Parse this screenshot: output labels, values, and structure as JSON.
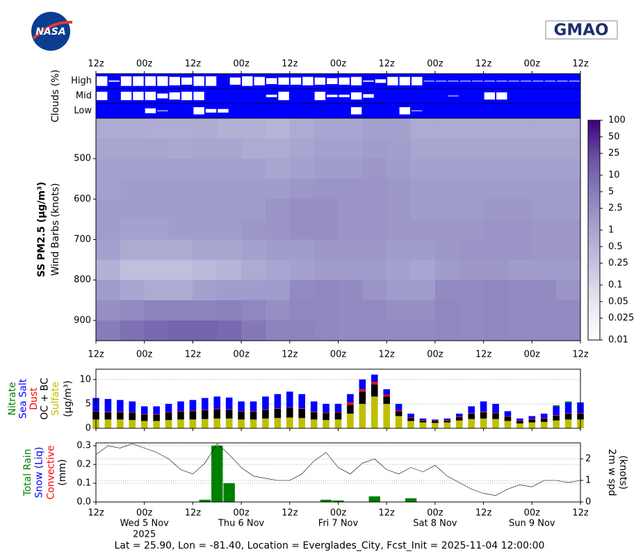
{
  "header": {
    "left_logo": "NASA",
    "right_logo": "GMAO"
  },
  "footer": "Lat = 25.90, Lon = -81.40, Location = Everglades_City, Fcst_Init = 2025-11-04 12:00:00",
  "time_axis": {
    "xlim": [
      0,
      120
    ],
    "xticks": [
      {
        "value": 0,
        "label": "12z"
      },
      {
        "value": 12,
        "label": "00z"
      },
      {
        "value": 24,
        "label": "12z"
      },
      {
        "value": 36,
        "label": "00z"
      },
      {
        "value": 48,
        "label": "12z"
      },
      {
        "value": 60,
        "label": "00z"
      },
      {
        "value": 72,
        "label": "12z"
      },
      {
        "value": 84,
        "label": "00z"
      },
      {
        "value": 96,
        "label": "12z"
      },
      {
        "value": 108,
        "label": "00z"
      },
      {
        "value": 120,
        "label": "12z"
      }
    ],
    "date_labels": [
      {
        "value": 12,
        "label": "Wed 5 Nov"
      },
      {
        "value": 36,
        "label": "Thu 6 Nov"
      },
      {
        "value": 60,
        "label": "Fri 7 Nov"
      },
      {
        "value": 84,
        "label": "Sat 8 Nov"
      },
      {
        "value": 108,
        "label": "Sun 9 Nov"
      }
    ],
    "year": {
      "value": 12,
      "label": "2025"
    }
  },
  "chart_data": [
    {
      "type": "cloud",
      "ylabel": "Clouds (%)",
      "background": "#0000ff",
      "box_color": "#ffffff",
      "categories": [
        "High",
        "Mid",
        "Low"
      ],
      "x": [
        0,
        3,
        6,
        9,
        12,
        15,
        18,
        21,
        24,
        27,
        30,
        33,
        36,
        39,
        42,
        45,
        48,
        51,
        54,
        57,
        60,
        63,
        66,
        69,
        72,
        75,
        78,
        81,
        84,
        87,
        90,
        93,
        96,
        99,
        102,
        105,
        108,
        111,
        114,
        117
      ],
      "values": [
        [
          80,
          10,
          80,
          80,
          80,
          80,
          70,
          60,
          80,
          80,
          0,
          60,
          80,
          70,
          50,
          60,
          60,
          70,
          60,
          50,
          60,
          70,
          10,
          30,
          70,
          70,
          70,
          5,
          5,
          5,
          5,
          5,
          5,
          5,
          5,
          5,
          5,
          5,
          5,
          5
        ],
        [
          70,
          0,
          70,
          70,
          70,
          40,
          60,
          70,
          70,
          0,
          0,
          0,
          0,
          0,
          20,
          70,
          0,
          0,
          70,
          20,
          20,
          60,
          30,
          0,
          0,
          0,
          0,
          0,
          0,
          5,
          0,
          0,
          60,
          60,
          0,
          0,
          0,
          0,
          0,
          0
        ],
        [
          0,
          0,
          0,
          0,
          40,
          5,
          0,
          0,
          60,
          30,
          30,
          0,
          0,
          0,
          0,
          0,
          0,
          0,
          0,
          0,
          0,
          60,
          0,
          0,
          0,
          60,
          5,
          0,
          0,
          0,
          0,
          0,
          0,
          0,
          0,
          0,
          0,
          0,
          0,
          0
        ]
      ]
    },
    {
      "type": "heatmap",
      "ylabel": "SS PM2.5 (μg/m³)",
      "ylabel2": "Wind Barbs (knots)",
      "ylim": [
        950,
        400
      ],
      "yticks": [
        500,
        600,
        700,
        800,
        900
      ],
      "x": [
        0,
        6,
        12,
        18,
        24,
        30,
        36,
        42,
        48,
        54,
        60,
        66,
        72,
        78,
        84,
        90,
        96,
        102,
        108,
        114
      ],
      "y": [
        425,
        475,
        525,
        575,
        625,
        675,
        725,
        775,
        825,
        875,
        925
      ],
      "values": [
        [
          0.8,
          0.8,
          0.7,
          0.7,
          0.8,
          0.6,
          0.6,
          0.5,
          0.8,
          1,
          1,
          1.2,
          1.2,
          0.8,
          0.8,
          0.8,
          0.8,
          0.8,
          0.8,
          0.8
        ],
        [
          1,
          1,
          1,
          0.9,
          1,
          1,
          0.8,
          0.8,
          1,
          1.2,
          1.2,
          1.5,
          1.3,
          1,
          1,
          1,
          1,
          1,
          1,
          1
        ],
        [
          1.2,
          1.2,
          1.2,
          1.2,
          1.2,
          1.2,
          1.2,
          1,
          1.2,
          1.5,
          1.5,
          1.8,
          1.5,
          1.2,
          1.2,
          1.2,
          1.2,
          1.2,
          1.2,
          1.2
        ],
        [
          1.2,
          1.5,
          1.5,
          1.5,
          1.5,
          1.5,
          1.5,
          1.5,
          1.8,
          2,
          2,
          2,
          1.8,
          1.5,
          1.5,
          1.5,
          1.5,
          1.5,
          1.5,
          1.5
        ],
        [
          1.5,
          1.5,
          1.5,
          1.5,
          1.5,
          1.5,
          1.5,
          2,
          2.5,
          2.5,
          2,
          2,
          1.8,
          1.5,
          1.5,
          1.5,
          1.8,
          1.8,
          1.5,
          1.5
        ],
        [
          1.5,
          1.2,
          1.2,
          1.5,
          1.5,
          1.5,
          1.8,
          2,
          2.5,
          2.5,
          2,
          2,
          1.8,
          1.8,
          1.8,
          1.8,
          2,
          2,
          1.8,
          1.8
        ],
        [
          1.2,
          0.8,
          0.8,
          0.8,
          1,
          1,
          1.2,
          1.5,
          1.5,
          1.8,
          1.8,
          1.8,
          1.5,
          1.5,
          1.8,
          2,
          2,
          2,
          1.8,
          1.8
        ],
        [
          0.6,
          0.3,
          0.3,
          0.3,
          0.4,
          0.5,
          0.8,
          1,
          1.2,
          1.5,
          1.5,
          1.5,
          1.2,
          1,
          1.5,
          1.8,
          1.8,
          1.5,
          1.5,
          1.5
        ],
        [
          1.5,
          1,
          0.8,
          0.8,
          1.2,
          1.5,
          1.5,
          1.5,
          3,
          3.5,
          3,
          2,
          1.5,
          1.5,
          3,
          3,
          3.5,
          3,
          3,
          2
        ],
        [
          2.5,
          3,
          4,
          4,
          4,
          4.5,
          3.5,
          2.5,
          3.5,
          3.5,
          3,
          3,
          2.5,
          2.5,
          3.5,
          3,
          3.5,
          3,
          3,
          3
        ],
        [
          5,
          8,
          10,
          12,
          12,
          10,
          6,
          4,
          4,
          3.5,
          3,
          3,
          3,
          3,
          3.5,
          3,
          3.5,
          3,
          3,
          3
        ]
      ],
      "log": true,
      "clim": [
        0.01,
        100
      ],
      "cticks": [
        100,
        50,
        25,
        10,
        5,
        2.5,
        1,
        0.5,
        0.25,
        0.1,
        0.05,
        0.025,
        0.01
      ],
      "colormap": [
        "#ffffff",
        "#e8e8f2",
        "#c6c6e0",
        "#a8a6d0",
        "#8a7fbc",
        "#6a51a3",
        "#3f007d"
      ]
    },
    {
      "type": "stacked_bar",
      "ylabel_unit": "(μg/m³)",
      "ylim": [
        0,
        12.1
      ],
      "yticks": [
        0,
        5,
        10
      ],
      "grid": true,
      "x": [
        0,
        3,
        6,
        9,
        12,
        15,
        18,
        21,
        24,
        27,
        30,
        33,
        36,
        39,
        42,
        45,
        48,
        51,
        54,
        57,
        60,
        63,
        66,
        69,
        72,
        75,
        78,
        81,
        84,
        87,
        90,
        93,
        96,
        99,
        102,
        105,
        108,
        111,
        114,
        117,
        120
      ],
      "series": [
        {
          "name": "Sulfate",
          "color": "#bfbf00",
          "values": [
            1.8,
            1.8,
            1.8,
            1.7,
            1.5,
            1.5,
            1.7,
            1.8,
            1.8,
            1.9,
            2.0,
            2.0,
            1.8,
            1.8,
            2.0,
            2.1,
            2.2,
            2.1,
            1.8,
            1.7,
            1.8,
            3.0,
            5.0,
            6.5,
            5.0,
            2.5,
            1.5,
            1.2,
            1.1,
            1.2,
            1.6,
            1.9,
            2.0,
            1.9,
            1.5,
            1.0,
            1.2,
            1.3,
            1.6,
            1.8,
            1.8
          ]
        },
        {
          "name": "OC + BC",
          "color": "#000000",
          "values": [
            1.6,
            1.5,
            1.5,
            1.5,
            1.3,
            1.3,
            1.5,
            1.6,
            1.7,
            1.8,
            1.9,
            1.8,
            1.6,
            1.6,
            1.8,
            1.9,
            2.0,
            1.9,
            1.5,
            1.4,
            1.4,
            1.8,
            2.5,
            2.5,
            1.5,
            1.0,
            0.6,
            0.4,
            0.4,
            0.4,
            0.7,
            1.1,
            1.3,
            1.2,
            0.9,
            0.5,
            0.6,
            0.7,
            1.0,
            1.2,
            1.2
          ]
        },
        {
          "name": "Dust",
          "color": "#ff0000",
          "values": [
            0.1,
            0.1,
            0.1,
            0.1,
            0.1,
            0.1,
            0.1,
            0.1,
            0.1,
            0.1,
            0.1,
            0.1,
            0.1,
            0.1,
            0.1,
            0.1,
            0.1,
            0.1,
            0.1,
            0.1,
            0.1,
            0.5,
            0.5,
            0.5,
            0.4,
            0.2,
            0.1,
            0.1,
            0.1,
            0.1,
            0.1,
            0.1,
            0.1,
            0.1,
            0.1,
            0.1,
            0.1,
            0.1,
            0.1,
            0.1,
            0.1
          ]
        },
        {
          "name": "Sea Salt",
          "color": "#0000ff",
          "values": [
            2.7,
            2.6,
            2.4,
            2.2,
            1.6,
            1.6,
            1.7,
            2.0,
            2.2,
            2.4,
            2.5,
            2.4,
            2.0,
            2.0,
            2.6,
            2.9,
            3.2,
            2.9,
            2.1,
            1.8,
            1.7,
            1.7,
            2.0,
            1.5,
            1.1,
            1.3,
            0.8,
            0.3,
            0.2,
            0.3,
            0.6,
            1.4,
            2.1,
            1.8,
            1.0,
            0.4,
            0.6,
            0.9,
            1.8,
            2.2,
            2.2
          ]
        },
        {
          "name": "Nitrate",
          "color": "#008000",
          "values": [
            0,
            0,
            0,
            0,
            0,
            0,
            0,
            0,
            0,
            0,
            0,
            0,
            0,
            0,
            0,
            0,
            0,
            0,
            0,
            0,
            0,
            0,
            0,
            0,
            0,
            0,
            0,
            0,
            0,
            0,
            0,
            0,
            0,
            0,
            0,
            0,
            0,
            0,
            0.2,
            0.2,
            0
          ]
        }
      ]
    },
    {
      "type": "bar_line",
      "ylabel_parts": [
        {
          "text": "Total Rain",
          "color": "#008000"
        },
        {
          "text": "Snow (Liq)",
          "color": "#0000ff"
        },
        {
          "text": "Convective",
          "color": "#ff0000"
        },
        {
          "text": "(mm)",
          "color": "#000000"
        }
      ],
      "y2label": [
        "2m w spd",
        "(knots)"
      ],
      "ylim": [
        0,
        0.315
      ],
      "yticks": [
        {
          "value": 0,
          "label": "0.0"
        },
        0.1,
        0.2,
        0.3
      ],
      "y2lim": [
        0,
        2.74
      ],
      "y2ticks": [
        0,
        1,
        2
      ],
      "grid": true,
      "x": [
        0,
        3,
        6,
        9,
        12,
        15,
        18,
        21,
        24,
        27,
        30,
        33,
        36,
        39,
        42,
        45,
        48,
        51,
        54,
        57,
        60,
        63,
        66,
        69,
        72,
        75,
        78,
        81,
        84,
        87,
        90,
        93,
        96,
        99,
        102,
        105,
        108,
        111,
        114,
        117,
        120
      ],
      "series": [
        {
          "color": "#008000",
          "values": [
            0,
            0,
            0,
            0,
            0,
            0,
            0,
            0,
            0,
            0.012,
            0.3,
            0.1,
            0,
            0,
            0,
            0,
            0,
            0,
            0,
            0.012,
            0.008,
            0,
            0,
            0.03,
            0,
            0,
            0.02,
            0,
            0,
            0,
            0,
            0,
            0,
            0,
            0,
            0,
            0,
            0,
            0,
            0,
            0
          ]
        },
        {
          "color": "#000000",
          "axis": "y2",
          "values": [
            2.2,
            2.6,
            2.5,
            2.7,
            2.5,
            2.3,
            2.0,
            1.5,
            1.3,
            1.8,
            2.7,
            2.2,
            1.6,
            1.2,
            1.1,
            1.0,
            1.0,
            1.3,
            1.9,
            2.3,
            1.6,
            1.3,
            1.8,
            2.0,
            1.5,
            1.3,
            1.6,
            1.4,
            1.7,
            1.2,
            0.9,
            0.6,
            0.4,
            0.3,
            0.6,
            0.8,
            0.7,
            1.0,
            1.0,
            0.9,
            1.0
          ]
        }
      ]
    }
  ]
}
